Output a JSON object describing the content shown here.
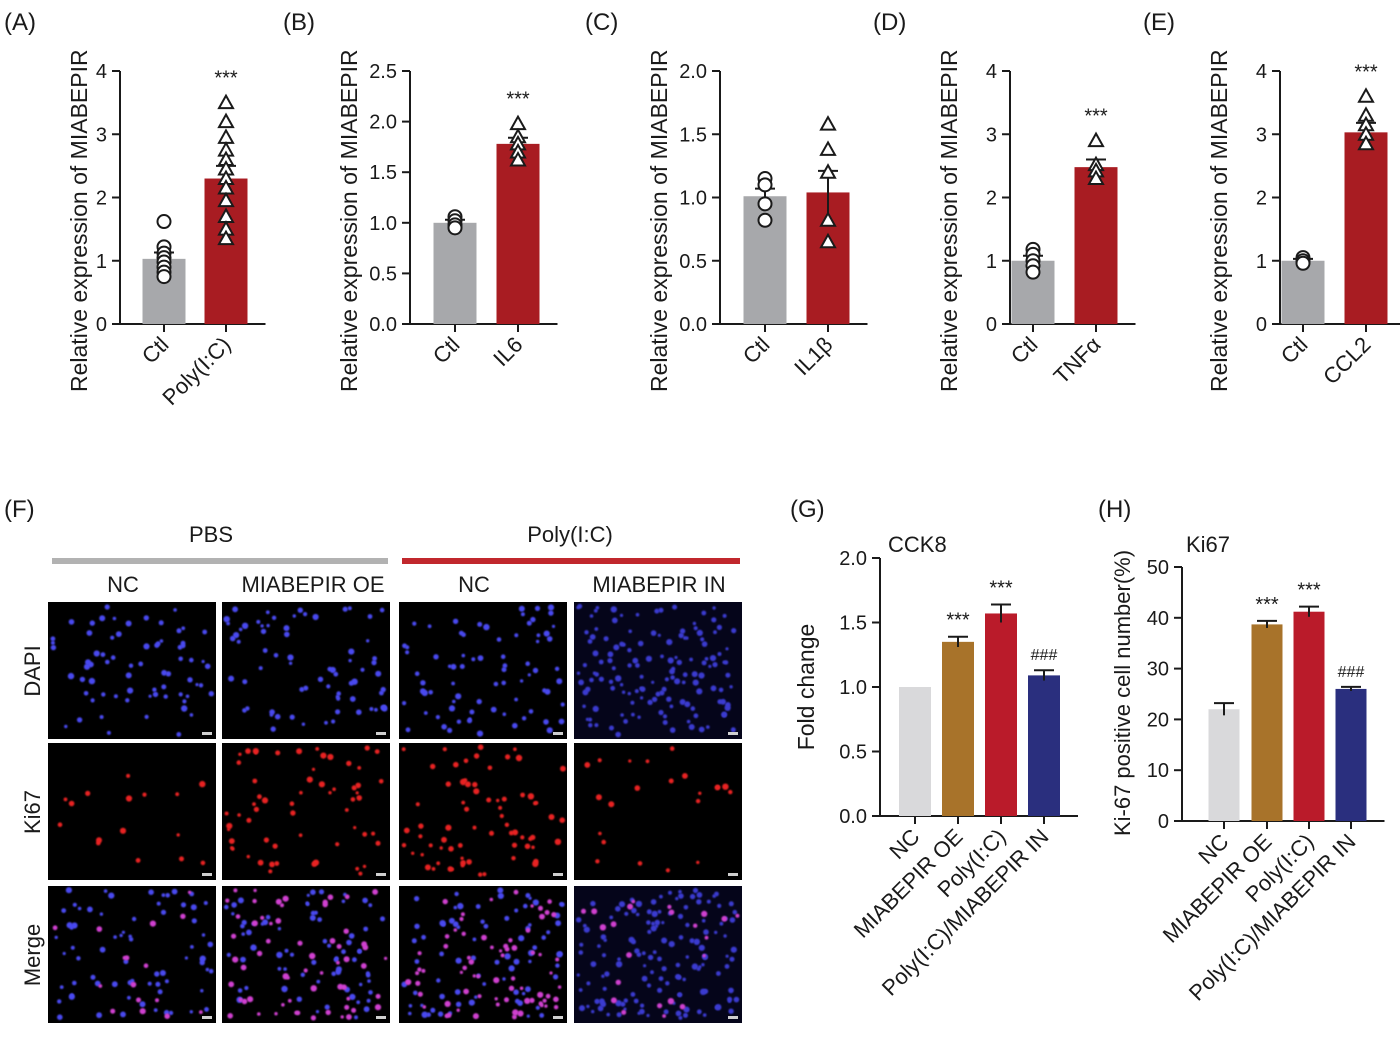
{
  "colors": {
    "ctl": "#a7a8ab",
    "treated": "#a81c22",
    "nc": "#d9d9db",
    "oe": "#a8732a",
    "polyic": "#ba1b2a",
    "inhib": "#2a2f7e",
    "pbs_line": "#b2b2b2",
    "polyic_line": "#c1272d",
    "dapi": "#4a4af0",
    "ki67": "#e82020",
    "merge": "#d040d0"
  },
  "chart_data": [
    {
      "id": "A",
      "type": "bar",
      "panel_label": "(A)",
      "ylabel": "Relative expression of MIABEPIR",
      "ylim": [
        0,
        4
      ],
      "yticks": [
        "0",
        "1",
        "2",
        "3",
        "4"
      ],
      "categories": [
        "Ctl",
        "Poly(I:C)"
      ],
      "values": [
        1.03,
        2.3
      ],
      "errors": [
        0.1,
        0.2
      ],
      "significance": [
        "",
        "***"
      ],
      "points": [
        [
          1.62,
          1.22,
          1.12,
          1.05,
          0.98,
          0.9,
          0.82,
          0.75
        ],
        [
          3.5,
          3.2,
          2.95,
          2.75,
          2.6,
          2.45,
          2.3,
          2.15,
          1.95,
          1.7,
          1.5,
          1.35
        ]
      ]
    },
    {
      "id": "B",
      "type": "bar",
      "panel_label": "(B)",
      "ylabel": "Relative expression of MIABEPIR",
      "ylim": [
        0,
        2.5
      ],
      "yticks": [
        "0.0",
        "0.5",
        "1.0",
        "1.5",
        "2.0",
        "2.5"
      ],
      "categories": [
        "Ctl",
        "IL6"
      ],
      "values": [
        1.0,
        1.78
      ],
      "errors": [
        0.03,
        0.06
      ],
      "significance": [
        "",
        "***"
      ],
      "points": [
        [
          1.06,
          1.02,
          0.98,
          0.95
        ],
        [
          1.98,
          1.85,
          1.78,
          1.7,
          1.62
        ]
      ]
    },
    {
      "id": "C",
      "type": "bar",
      "panel_label": "(C)",
      "ylabel": "Relative expression of MIABEPIR",
      "ylim": [
        0,
        2.0
      ],
      "yticks": [
        "0.0",
        "0.5",
        "1.0",
        "1.5",
        "2.0"
      ],
      "categories": [
        "Ctl",
        "IL1β"
      ],
      "values": [
        1.01,
        1.04
      ],
      "errors": [
        0.06,
        0.17
      ],
      "significance": [
        "",
        ""
      ],
      "points": [
        [
          1.15,
          1.1,
          0.95,
          0.82
        ],
        [
          1.58,
          1.38,
          1.2,
          0.82,
          0.65
        ]
      ]
    },
    {
      "id": "D",
      "type": "bar",
      "panel_label": "(D)",
      "ylabel": "Relative expression of MIABEPIR",
      "ylim": [
        0,
        4
      ],
      "yticks": [
        "0",
        "1",
        "2",
        "3",
        "4"
      ],
      "categories": [
        "Ctl",
        "TNFα"
      ],
      "values": [
        1.0,
        2.48
      ],
      "errors": [
        0.08,
        0.12
      ],
      "significance": [
        "",
        "***"
      ],
      "points": [
        [
          1.18,
          1.1,
          1.0,
          0.92,
          0.82
        ],
        [
          2.9,
          2.52,
          2.42,
          2.3
        ]
      ]
    },
    {
      "id": "E",
      "type": "bar",
      "panel_label": "(E)",
      "ylabel": "Relative expression of MIABEPIR",
      "ylim": [
        0,
        4
      ],
      "yticks": [
        "0",
        "1",
        "2",
        "3",
        "4"
      ],
      "categories": [
        "Ctl",
        "CCL2"
      ],
      "values": [
        1.0,
        3.03
      ],
      "errors": [
        0.03,
        0.15
      ],
      "significance": [
        "",
        "***"
      ],
      "points": [
        [
          1.05,
          1.0,
          0.96
        ],
        [
          3.6,
          3.3,
          3.15,
          3.0,
          2.85
        ]
      ]
    },
    {
      "id": "G",
      "type": "bar",
      "panel_label": "(G)",
      "title": "CCK8",
      "ylabel": "Fold change",
      "ylim": [
        0,
        2.0
      ],
      "yticks": [
        "0.0",
        "0.5",
        "1.0",
        "1.5",
        "2.0"
      ],
      "categories": [
        "NC",
        "MIABEPIR OE",
        "Poly(I:C)",
        "Poly(I:C)/MIABEPIR IN"
      ],
      "values": [
        1.0,
        1.35,
        1.57,
        1.09
      ],
      "errors": [
        0,
        0.04,
        0.07,
        0.04
      ],
      "significance": [
        "",
        "***",
        "***",
        "###"
      ]
    },
    {
      "id": "H",
      "type": "bar",
      "panel_label": "(H)",
      "title": "Ki67",
      "ylabel": "Ki-67 positive cell number(%)",
      "ylim": [
        0,
        50
      ],
      "yticks": [
        "0",
        "10",
        "20",
        "30",
        "40",
        "50"
      ],
      "categories": [
        "NC",
        "MIABEPIR OE",
        "Poly(I:C)",
        "Poly(I:C)/MIABEPIR IN"
      ],
      "values": [
        22,
        38.7,
        41.2,
        26
      ],
      "errors": [
        1.2,
        0.7,
        1.0,
        0.4
      ],
      "significance": [
        "",
        "***",
        "***",
        "###"
      ]
    }
  ],
  "micrograph": {
    "panel_label": "(F)",
    "group_labels": [
      "PBS",
      "Poly(I:C)"
    ],
    "column_labels": [
      "NC",
      "MIABEPIR OE",
      "NC",
      "MIABEPIR IN"
    ],
    "row_labels": [
      "DAPI",
      "Ki67",
      "Merge"
    ]
  }
}
